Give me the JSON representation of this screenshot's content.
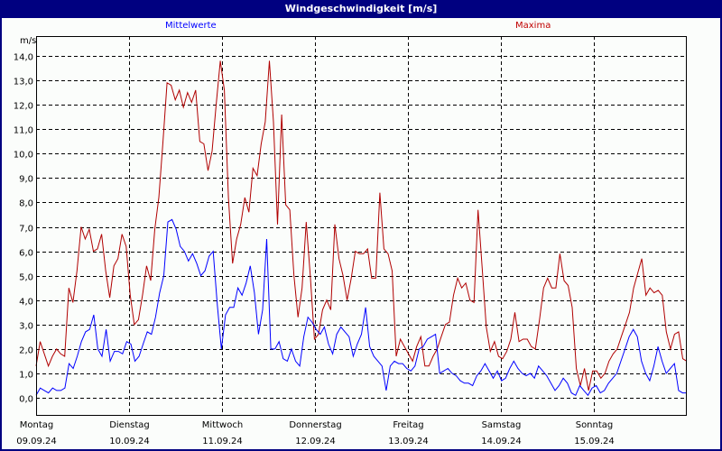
{
  "window": {
    "title": "Windgeschwindigkeit [m/s]"
  },
  "legend": {
    "mean_label": "Mittelwerte",
    "max_label": "Maxima",
    "mean_color": "#0000ff",
    "max_color": "#b00000"
  },
  "axis": {
    "unit": "m/s"
  },
  "chart_data": {
    "type": "line",
    "title": "Windgeschwindigkeit [m/s]",
    "xlabel": "",
    "ylabel": "m/s",
    "ylim": [
      -0.75,
      15.0
    ],
    "yticks": [
      "0,0",
      "1,0",
      "2,0",
      "3,0",
      "4,0",
      "5,0",
      "6,0",
      "7,0",
      "8,0",
      "9,0",
      "10,0",
      "11,0",
      "12,0",
      "13,0",
      "14,0"
    ],
    "grid": true,
    "legend_position": "top",
    "categories": [
      {
        "day": "Montag",
        "date": "09.09.24"
      },
      {
        "day": "Dienstag",
        "date": "10.09.24"
      },
      {
        "day": "Mittwoch",
        "date": "11.09.24"
      },
      {
        "day": "Donnerstag",
        "date": "12.09.24"
      },
      {
        "day": "Freitag",
        "date": "13.09.24"
      },
      {
        "day": "Samstag",
        "date": "14.09.24"
      },
      {
        "day": "Sonntag",
        "date": "15.09.24"
      }
    ],
    "x_interval_hours": 2,
    "series": [
      {
        "name": "Maxima",
        "color": "#b00000",
        "values": [
          1.3,
          2.3,
          1.8,
          1.3,
          1.7,
          2.0,
          1.8,
          1.7,
          4.5,
          3.9,
          5.2,
          7.0,
          6.5,
          6.9,
          6.0,
          6.1,
          6.7,
          5.2,
          4.1,
          5.4,
          5.7,
          6.7,
          6.2,
          4.2,
          3.0,
          3.2,
          4.2,
          5.4,
          4.8,
          6.9,
          8.2,
          10.5,
          12.9,
          12.8,
          12.2,
          12.6,
          11.9,
          12.5,
          12.1,
          12.6,
          10.5,
          10.4,
          9.3,
          10.1,
          12.0,
          13.8,
          12.6,
          8.2,
          5.5,
          6.5,
          7.1,
          8.2,
          7.6,
          9.4,
          9.1,
          10.4,
          11.3,
          13.8,
          11.3,
          7.1,
          11.6,
          7.9,
          7.7,
          5.0,
          3.3,
          4.5,
          7.2,
          5.0,
          2.4,
          2.6,
          3.6,
          4.0,
          3.6,
          7.1,
          5.7,
          5.0,
          4.0,
          4.9,
          6.0,
          5.9,
          5.9,
          6.1,
          4.9,
          4.9,
          8.4,
          6.1,
          5.9,
          5.2,
          1.7,
          2.4,
          2.1,
          1.8,
          1.5,
          2.1,
          2.5,
          1.3,
          1.3,
          1.7,
          2.0,
          2.5,
          3.0,
          3.1,
          4.2,
          4.9,
          4.5,
          4.7,
          4.0,
          3.9,
          7.7,
          5.3,
          2.9,
          1.9,
          2.3,
          1.7,
          1.6,
          1.9,
          2.4,
          3.5,
          2.3,
          2.4,
          2.4,
          2.1,
          2.0,
          3.2,
          4.5,
          4.9,
          4.5,
          4.5,
          5.9,
          4.8,
          4.6,
          3.7,
          1.2,
          0.5,
          1.2,
          0.3,
          1.1,
          1.1,
          0.8,
          1.0,
          1.5,
          1.8,
          2.0,
          2.5,
          3.0,
          3.5,
          4.5,
          5.1,
          5.7,
          4.2,
          4.5,
          4.3,
          4.4,
          4.2,
          2.7,
          2.0,
          2.6,
          2.7,
          1.6,
          1.5
        ]
      },
      {
        "name": "Mittelwerte",
        "color": "#0000ff",
        "values": [
          0.1,
          0.4,
          0.3,
          0.2,
          0.4,
          0.3,
          0.3,
          0.4,
          1.4,
          1.2,
          1.7,
          2.3,
          2.7,
          2.8,
          3.4,
          2.0,
          1.7,
          2.8,
          1.5,
          1.9,
          1.9,
          1.8,
          2.3,
          2.2,
          1.5,
          1.7,
          2.2,
          2.7,
          2.6,
          3.3,
          4.3,
          5.0,
          7.2,
          7.3,
          6.9,
          6.2,
          6.0,
          5.6,
          5.9,
          5.5,
          5.0,
          5.2,
          5.8,
          6.0,
          3.8,
          2.0,
          3.4,
          3.7,
          3.7,
          4.5,
          4.2,
          4.7,
          5.4,
          4.3,
          2.6,
          3.6,
          6.5,
          2.0,
          2.0,
          2.3,
          1.6,
          1.5,
          2.0,
          1.5,
          1.3,
          2.5,
          3.3,
          3.1,
          2.8,
          2.6,
          2.9,
          2.2,
          1.8,
          2.6,
          2.9,
          2.7,
          2.5,
          1.7,
          2.2,
          2.6,
          3.7,
          2.1,
          1.7,
          1.5,
          1.3,
          0.3,
          1.3,
          1.5,
          1.4,
          1.4,
          1.2,
          1.1,
          1.3,
          2.0,
          2.1,
          2.4,
          2.5,
          2.6,
          1.0,
          1.1,
          1.2,
          1.0,
          0.9,
          0.7,
          0.6,
          0.6,
          0.5,
          0.9,
          1.1,
          1.4,
          1.1,
          0.8,
          1.1,
          0.7,
          0.8,
          1.2,
          1.5,
          1.2,
          1.0,
          0.9,
          1.0,
          0.8,
          1.3,
          1.1,
          0.9,
          0.6,
          0.3,
          0.5,
          0.8,
          0.6,
          0.2,
          0.1,
          0.5,
          0.3,
          0.1,
          0.4,
          0.5,
          0.2,
          0.3,
          0.6,
          0.8,
          1.0,
          1.5,
          2.0,
          2.5,
          2.8,
          2.5,
          1.5,
          1.0,
          0.7,
          1.3,
          2.1,
          1.5,
          1.0,
          1.2,
          1.4,
          0.3,
          0.2,
          0.2
        ]
      }
    ]
  }
}
